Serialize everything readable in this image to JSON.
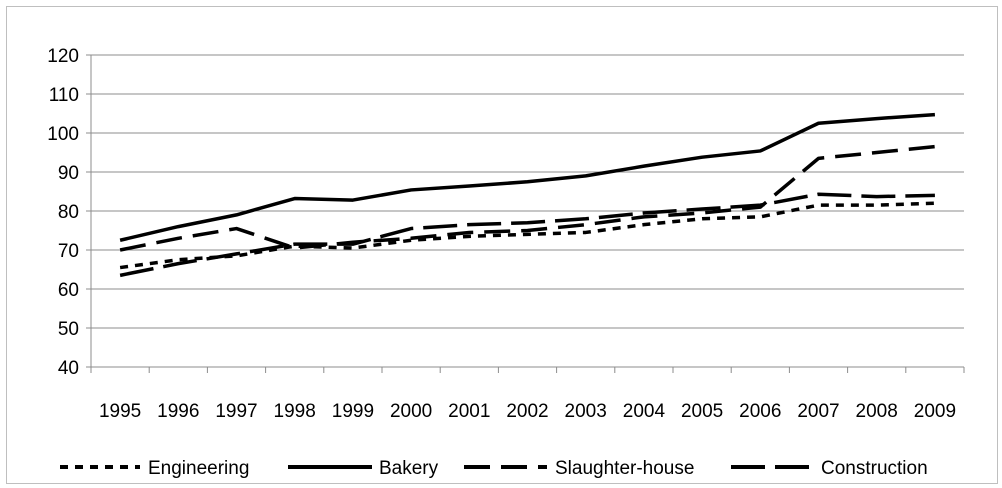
{
  "chart_data": {
    "type": "line",
    "title": "",
    "xlabel": "",
    "ylabel": "",
    "ylim": [
      40,
      120
    ],
    "yticks": [
      40,
      50,
      60,
      70,
      80,
      90,
      100,
      110,
      120
    ],
    "grid": "horizontal",
    "legend_position": "bottom",
    "categories": [
      "1995",
      "1996",
      "1997",
      "1998",
      "1999",
      "2000",
      "2001",
      "2002",
      "2003",
      "2004",
      "2005",
      "2006",
      "2007",
      "2008",
      "2009"
    ],
    "series": [
      {
        "name": "Engineering",
        "dash": "dotted-short",
        "values": [
          65.5,
          67.5,
          68.5,
          71.0,
          70.5,
          72.5,
          73.5,
          74.0,
          74.5,
          76.5,
          78.0,
          78.5,
          81.5,
          81.5,
          82.0
        ]
      },
      {
        "name": "Bakery",
        "dash": "solid",
        "values": [
          72.5,
          76.0,
          79.0,
          83.2,
          82.8,
          85.4,
          86.4,
          87.5,
          89.0,
          91.5,
          93.8,
          95.4,
          102.5,
          103.7,
          104.7
        ]
      },
      {
        "name": "Slaughter-house",
        "dash": "long-dash",
        "values": [
          70.0,
          73.0,
          75.5,
          70.5,
          72.0,
          73.0,
          74.5,
          75.0,
          76.5,
          78.5,
          79.5,
          81.0,
          93.5,
          95.0,
          96.5
        ]
      },
      {
        "name": "Construction",
        "dash": "long-long-dash",
        "values": [
          63.5,
          66.5,
          69.0,
          71.5,
          71.5,
          75.5,
          76.5,
          77.0,
          78.0,
          79.5,
          80.5,
          81.5,
          84.3,
          83.7,
          84.0
        ]
      }
    ]
  }
}
